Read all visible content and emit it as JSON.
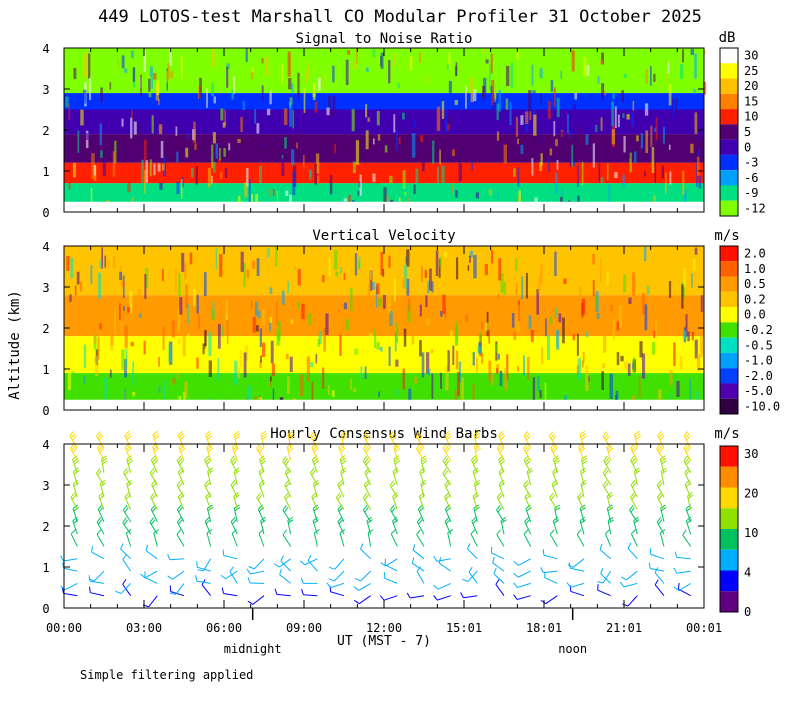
{
  "figure": {
    "title": "449 LOTOS-test Marshall CO Modular Profiler 31 October 2025",
    "ylabel": "Altitude (km)",
    "xlabel": "UT  (MST - 7)",
    "footnote": "Simple filtering applied",
    "time_ticks": [
      "00:00",
      "03:00",
      "06:00",
      "09:00",
      "12:00",
      "15:01",
      "18:01",
      "21:01",
      "00:01"
    ],
    "day_markers": [
      {
        "label": "midnight",
        "hour": 7
      },
      {
        "label": "noon",
        "hour": 19
      }
    ]
  },
  "chart_data": [
    {
      "type": "heatmap",
      "title": "Signal to Noise Ratio",
      "unit": "dB",
      "x_range_hours": [
        0,
        24
      ],
      "ylim": [
        0,
        4
      ],
      "y_ticks": [
        "0",
        "1",
        "2",
        "3",
        "4"
      ],
      "colorbar_labels": [
        "30",
        "25",
        "20",
        "15",
        "10",
        "5",
        "0",
        "-3",
        "-6",
        "-9",
        "-12"
      ],
      "colorbar_colors": [
        "#ffffff",
        "#ffff00",
        "#ffc000",
        "#ff8000",
        "#ff2000",
        "#500070",
        "#4000b0",
        "#0030ff",
        "#00a0ff",
        "#00e080",
        "#80ff00"
      ],
      "bands": [
        {
          "label": "-12",
          "ymin": 2.9,
          "ymax": 4.0
        },
        {
          "label": "-3",
          "ymin": 2.5,
          "ymax": 2.9
        },
        {
          "label": "0",
          "ymin": 1.9,
          "ymax": 2.5
        },
        {
          "label": "5",
          "ymin": 1.2,
          "ymax": 1.9
        },
        {
          "label": "10",
          "ymin": 0.7,
          "ymax": 1.2
        },
        {
          "label": "-9",
          "ymin": 0.25,
          "ymax": 0.7
        }
      ]
    },
    {
      "type": "heatmap",
      "title": "Vertical Velocity",
      "unit": "m/s",
      "x_range_hours": [
        0,
        24
      ],
      "ylim": [
        0,
        4
      ],
      "y_ticks": [
        "0",
        "1",
        "2",
        "3",
        "4"
      ],
      "colorbar_labels": [
        "2.0",
        "1.0",
        "0.5",
        "0.2",
        "0.0",
        "-0.2",
        "-0.5",
        "-1.0",
        "-2.0",
        "-5.0",
        "-10.0"
      ],
      "colorbar_colors": [
        "#ff1000",
        "#ff6000",
        "#ff9a00",
        "#ffc400",
        "#ffff00",
        "#40e000",
        "#00e0c0",
        "#00a0ff",
        "#0040ff",
        "#5000b0",
        "#300040"
      ],
      "bands": [
        {
          "label": "0.2",
          "ymin": 2.8,
          "ymax": 4.0
        },
        {
          "label": "0.5",
          "ymin": 1.8,
          "ymax": 2.8
        },
        {
          "label": "0.0",
          "ymin": 0.9,
          "ymax": 1.8
        },
        {
          "label": "-0.2",
          "ymin": 0.25,
          "ymax": 0.9
        }
      ]
    },
    {
      "type": "wind_barbs",
      "title": "Hourly Consensus Wind Barbs",
      "unit": "m/s",
      "x_range_hours": [
        0,
        24
      ],
      "ylim": [
        0,
        4
      ],
      "y_ticks": [
        "0",
        "1",
        "2",
        "3",
        "4"
      ],
      "colorbar_labels": [
        "30",
        "20",
        "10",
        "4",
        "0"
      ],
      "colorbar_colors": [
        "#ff1000",
        "#ff8c00",
        "#ffd800",
        "#90e000",
        "#00c060",
        "#00b0ff",
        "#0000ff",
        "#600080"
      ],
      "barb_hours": [
        0.5,
        1.5,
        2.5,
        3.5,
        4.5,
        5.5,
        6.5,
        7.5,
        8.5,
        9.5,
        10.5,
        11.5,
        12.5,
        13.5,
        14.5,
        15.5,
        16.5,
        17.5,
        18.5,
        19.5,
        20.5,
        21.5,
        22.5,
        23.5
      ],
      "levels_km": [
        0.3,
        0.6,
        0.9,
        1.2,
        1.5,
        1.8,
        2.1,
        2.4,
        2.7,
        3.0,
        3.3,
        3.6,
        3.9
      ],
      "speed_by_level_ms": [
        3,
        4,
        5,
        6,
        7,
        8,
        9,
        10,
        11,
        12,
        13,
        14,
        15
      ]
    }
  ]
}
